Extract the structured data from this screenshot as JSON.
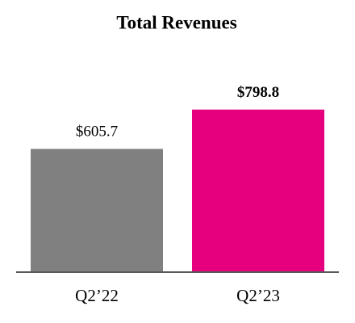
{
  "chart_data": {
    "type": "bar",
    "title": "Total Revenues",
    "categories": [
      "Q2’22",
      "Q2’23"
    ],
    "values": [
      605.7,
      798.8
    ],
    "value_labels": [
      "$605.7",
      "$798.8"
    ],
    "colors": [
      "#808080",
      "#e6007e"
    ]
  }
}
